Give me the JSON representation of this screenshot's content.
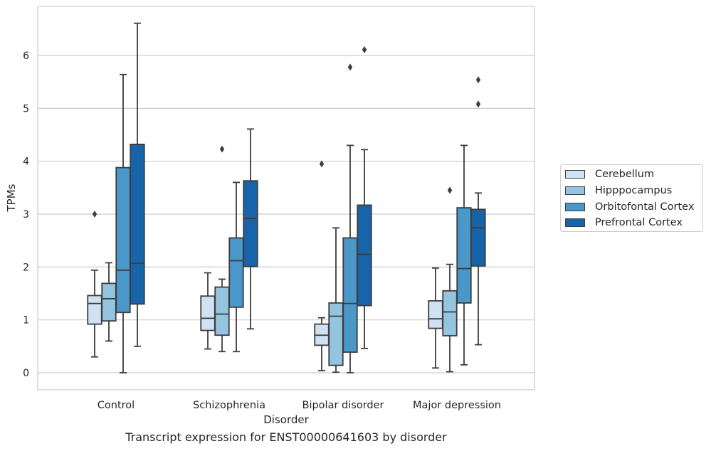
{
  "chart_data": {
    "type": "box",
    "title": "",
    "caption": "Transcript expression for ENST00000641603 by disorder",
    "xlabel": "Disorder",
    "ylabel": "TPMs",
    "ylim": [
      -0.32,
      7.0
    ],
    "yticks": [
      0,
      1,
      2,
      3,
      4,
      5,
      6
    ],
    "grid": "horizontal",
    "legend_position": "right",
    "categories": [
      "Control",
      "Schizophrenia",
      "Bipolar disorder",
      "Major depression"
    ],
    "series": [
      {
        "name": "Cerebellum",
        "color": "#d0e1f2",
        "boxes": [
          {
            "whisker_low": 0.3,
            "q1": 0.92,
            "median": 1.31,
            "q3": 1.46,
            "whisker_high": 1.94,
            "outliers": [
              3.0
            ]
          },
          {
            "whisker_low": 0.45,
            "q1": 0.8,
            "median": 1.03,
            "q3": 1.45,
            "whisker_high": 1.89,
            "outliers": []
          },
          {
            "whisker_low": 0.04,
            "q1": 0.52,
            "median": 0.71,
            "q3": 0.92,
            "whisker_high": 1.04,
            "outliers": [
              3.95
            ]
          },
          {
            "whisker_low": 0.09,
            "q1": 0.84,
            "median": 1.02,
            "q3": 1.36,
            "whisker_high": 1.98,
            "outliers": []
          }
        ]
      },
      {
        "name": "Hipppocampus",
        "color": "#94c4df",
        "boxes": [
          {
            "whisker_low": 0.6,
            "q1": 0.98,
            "median": 1.4,
            "q3": 1.69,
            "whisker_high": 2.08,
            "outliers": []
          },
          {
            "whisker_low": 0.4,
            "q1": 0.71,
            "median": 1.11,
            "q3": 1.62,
            "whisker_high": 1.77,
            "outliers": [
              4.23
            ]
          },
          {
            "whisker_low": 0.01,
            "q1": 0.14,
            "median": 1.07,
            "q3": 1.32,
            "whisker_high": 2.74,
            "outliers": []
          },
          {
            "whisker_low": 0.02,
            "q1": 0.7,
            "median": 1.15,
            "q3": 1.55,
            "whisker_high": 2.05,
            "outliers": [
              3.45
            ]
          }
        ]
      },
      {
        "name": "Orbitofontal Cortex",
        "color": "#4a98c9",
        "boxes": [
          {
            "whisker_low": 0.0,
            "q1": 1.14,
            "median": 1.94,
            "q3": 3.88,
            "whisker_high": 5.64,
            "outliers": []
          },
          {
            "whisker_low": 0.4,
            "q1": 1.24,
            "median": 2.12,
            "q3": 2.55,
            "whisker_high": 3.6,
            "outliers": []
          },
          {
            "whisker_low": 0.0,
            "q1": 0.39,
            "median": 1.31,
            "q3": 2.55,
            "whisker_high": 4.3,
            "outliers": [
              5.78
            ]
          },
          {
            "whisker_low": 0.15,
            "q1": 1.32,
            "median": 1.97,
            "q3": 3.12,
            "whisker_high": 4.3,
            "outliers": []
          }
        ]
      },
      {
        "name": "Prefrontal Cortex",
        "color": "#1764ab",
        "boxes": [
          {
            "whisker_low": 0.5,
            "q1": 1.3,
            "median": 2.07,
            "q3": 4.32,
            "whisker_high": 6.61,
            "outliers": []
          },
          {
            "whisker_low": 0.83,
            "q1": 2.01,
            "median": 2.92,
            "q3": 3.63,
            "whisker_high": 4.61,
            "outliers": []
          },
          {
            "whisker_low": 0.46,
            "q1": 1.27,
            "median": 2.24,
            "q3": 3.17,
            "whisker_high": 4.22,
            "outliers": [
              6.11
            ]
          },
          {
            "whisker_low": 0.53,
            "q1": 2.02,
            "median": 2.74,
            "q3": 3.09,
            "whisker_high": 3.4,
            "outliers": [
              5.08,
              5.54
            ]
          }
        ]
      }
    ]
  }
}
